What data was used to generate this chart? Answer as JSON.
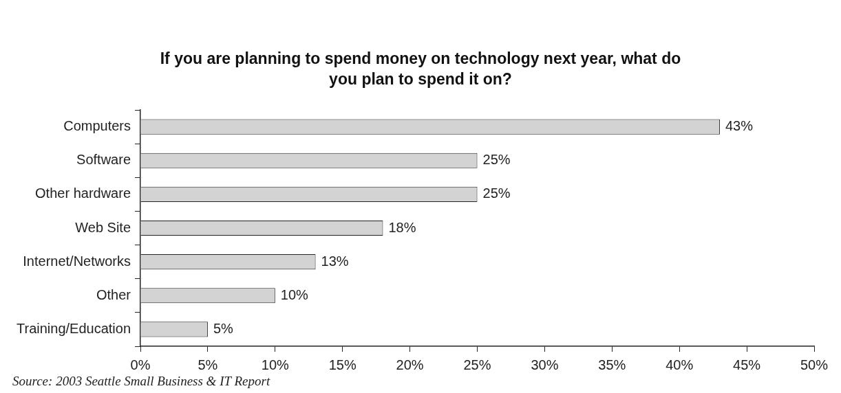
{
  "chart_data": {
    "type": "bar",
    "orientation": "horizontal",
    "title": "If you are planning to spend money on technology next year, what do you plan to spend it on?",
    "categories": [
      "Computers",
      "Software",
      "Other hardware",
      "Web Site",
      "Internet/Networks",
      "Other",
      "Training/Education"
    ],
    "values": [
      43,
      25,
      25,
      18,
      13,
      10,
      5
    ],
    "value_labels": [
      "43%",
      "25%",
      "25%",
      "18%",
      "13%",
      "10%",
      "5%"
    ],
    "color": "#d3d3d3",
    "xlim": [
      0,
      50
    ],
    "xticks": [
      {
        "value": 0,
        "label": "0%"
      },
      {
        "value": 5,
        "label": "5%"
      },
      {
        "value": 10,
        "label": "10%"
      },
      {
        "value": 15,
        "label": "15%"
      },
      {
        "value": 20,
        "label": "20%"
      },
      {
        "value": 25,
        "label": "25%"
      },
      {
        "value": 30,
        "label": "30%"
      },
      {
        "value": 35,
        "label": "35%"
      },
      {
        "value": 40,
        "label": "40%"
      },
      {
        "value": 45,
        "label": "45%"
      },
      {
        "value": 50,
        "label": "50%"
      }
    ],
    "grid": false,
    "legend": false,
    "annotations": [
      "Source: 2003 Seattle Small Business & IT Report"
    ]
  }
}
